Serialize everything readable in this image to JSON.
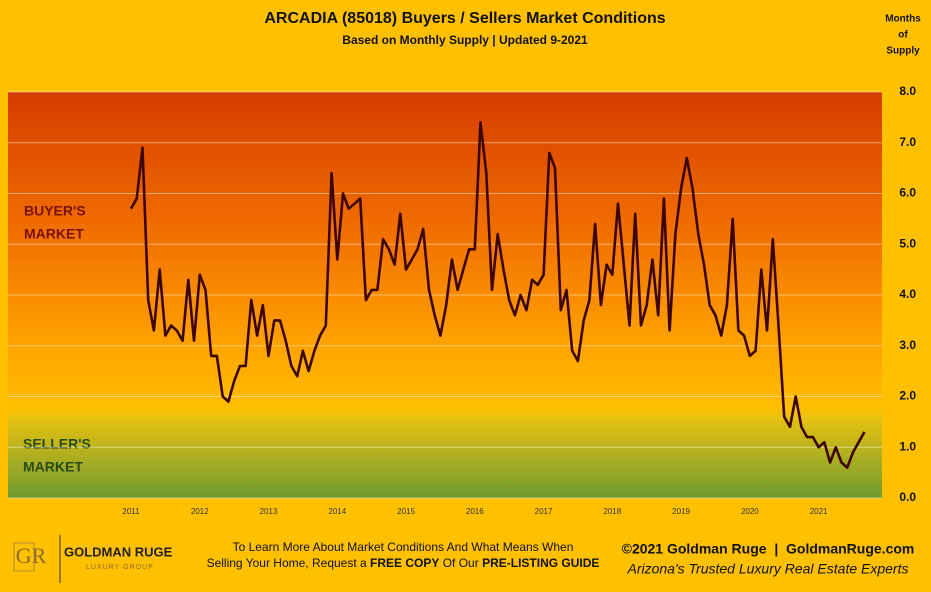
{
  "chart_data": {
    "type": "line",
    "title": "ARCADIA (85018) Buyers / Sellers Market Conditions",
    "subtitle": "Based on Monthly Supply | Updated 9-2021",
    "y_label": [
      "Months",
      "of",
      "Supply"
    ],
    "annotations": {
      "buyers": [
        "BUYER'S",
        "MARKET"
      ],
      "sellers": [
        "SELLER'S",
        "MARKET"
      ]
    },
    "categories": [
      "2011",
      null,
      null,
      null,
      null,
      null,
      null,
      null,
      null,
      null,
      null,
      null,
      "2012",
      null,
      null,
      null,
      null,
      null,
      null,
      null,
      null,
      null,
      null,
      null,
      "2013",
      null,
      null,
      null,
      null,
      null,
      null,
      null,
      null,
      null,
      null,
      null,
      "2014",
      null,
      null,
      null,
      null,
      null,
      null,
      null,
      null,
      null,
      null,
      null,
      "2015",
      null,
      null,
      null,
      null,
      null,
      null,
      null,
      null,
      null,
      null,
      null,
      "2016",
      null,
      null,
      null,
      null,
      null,
      null,
      null,
      null,
      null,
      null,
      null,
      "2017",
      null,
      null,
      null,
      null,
      null,
      null,
      null,
      null,
      null,
      null,
      null,
      "2018",
      null,
      null,
      null,
      null,
      null,
      null,
      null,
      null,
      null,
      null,
      null,
      "2019",
      null,
      null,
      null,
      null,
      null,
      null,
      null,
      null,
      null,
      null,
      null,
      "2020",
      null,
      null,
      null,
      null,
      null,
      null,
      null,
      null,
      null,
      null,
      null,
      "2021",
      null,
      null,
      null,
      null,
      null,
      null,
      null,
      null
    ],
    "series": [
      {
        "name": "Months of Supply",
        "color": "#3d0606",
        "values": [
          5.7,
          5.9,
          6.9,
          3.9,
          3.3,
          4.5,
          3.2,
          3.4,
          3.3,
          3.1,
          4.3,
          3.1,
          4.4,
          4.1,
          2.8,
          2.8,
          2.0,
          1.9,
          2.3,
          2.6,
          2.6,
          3.9,
          3.2,
          3.8,
          2.8,
          3.5,
          3.5,
          3.1,
          2.6,
          2.4,
          2.9,
          2.5,
          2.9,
          3.2,
          3.4,
          6.4,
          4.7,
          6.0,
          5.7,
          5.8,
          5.9,
          3.9,
          4.1,
          4.1,
          5.1,
          4.9,
          4.6,
          5.6,
          4.5,
          4.7,
          4.9,
          5.3,
          4.1,
          3.6,
          3.2,
          3.8,
          4.7,
          4.1,
          4.5,
          4.9,
          4.9,
          7.4,
          6.4,
          4.1,
          5.2,
          4.5,
          3.9,
          3.6,
          4.0,
          3.7,
          4.3,
          4.2,
          4.4,
          6.8,
          6.5,
          3.7,
          4.1,
          2.9,
          2.7,
          3.5,
          3.9,
          5.4,
          3.8,
          4.6,
          4.4,
          5.8,
          4.6,
          3.4,
          5.6,
          3.4,
          3.8,
          4.7,
          3.6,
          5.9,
          3.3,
          5.2,
          6.1,
          6.7,
          6.1,
          5.2,
          4.6,
          3.8,
          3.6,
          3.2,
          3.8,
          5.5,
          3.3,
          3.2,
          2.8,
          2.9,
          4.5,
          3.3,
          5.1,
          3.4,
          1.6,
          1.4,
          2.0,
          1.4,
          1.2,
          1.2,
          1.0,
          1.1,
          0.7,
          1.0,
          0.7,
          0.6,
          0.9,
          1.1,
          1.3
        ]
      }
    ],
    "ylim": [
      0,
      8
    ],
    "yticks": [
      {
        "value": 0,
        "label": "0.0"
      },
      {
        "value": 1,
        "label": "1.0"
      },
      {
        "value": 2,
        "label": "2.0"
      },
      {
        "value": 3,
        "label": "3.0"
      },
      {
        "value": 4,
        "label": "4.0"
      },
      {
        "value": 5,
        "label": "5.0"
      },
      {
        "value": 6,
        "label": "6.0"
      },
      {
        "value": 7,
        "label": "7.0"
      },
      {
        "value": 8,
        "label": "8.0"
      }
    ],
    "grid": true
  },
  "footer": {
    "logo_mark": "GR",
    "logo_name": "GOLDMAN RUGE",
    "logo_sub": "LUXURY GROUP",
    "cta_line1": "To Learn More About Market Conditions And What Means When",
    "cta_line2": [
      "Selling Your Home, Request a ",
      "FREE COPY",
      " Of Our ",
      "PRE-LISTING GUIDE"
    ],
    "copyright": "©2021 Goldman Ruge  |  GoldmanRuge.com",
    "tagline": "Arizona's Trusted Luxury Real Estate Experts"
  }
}
